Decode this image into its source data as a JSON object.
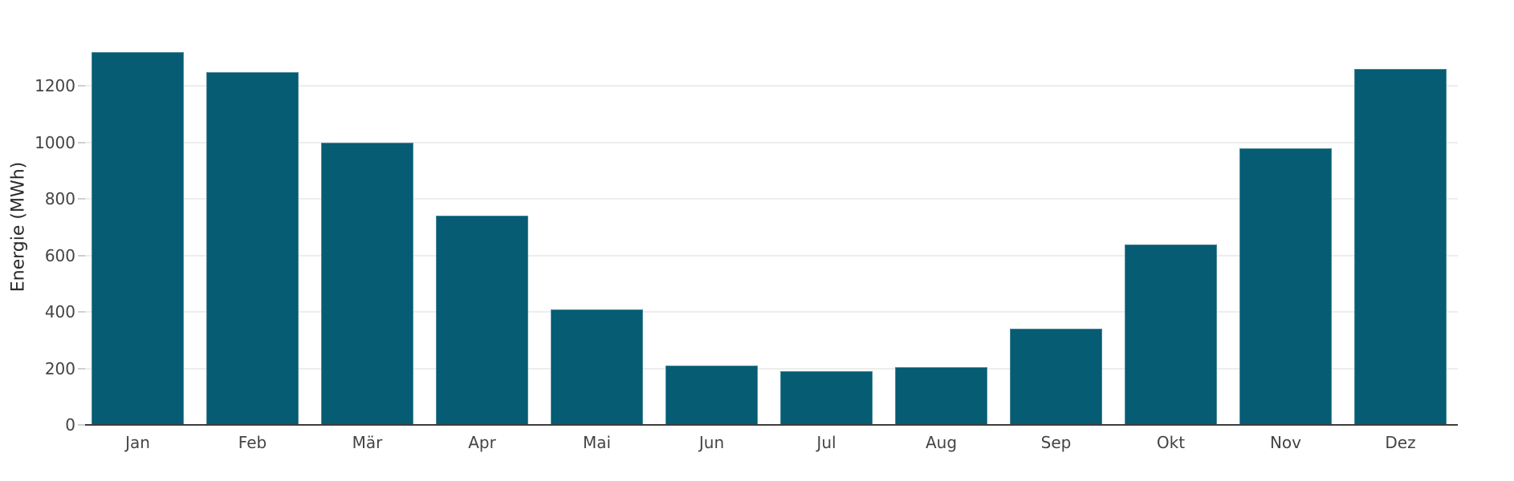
{
  "chart_data": {
    "type": "bar",
    "title": "",
    "categories": [
      "Jan",
      "Feb",
      "Mär",
      "Apr",
      "Mai",
      "Jun",
      "Jul",
      "Aug",
      "Sep",
      "Okt",
      "Nov",
      "Dez"
    ],
    "values": [
      1320,
      1250,
      1000,
      740,
      410,
      210,
      190,
      205,
      340,
      640,
      980,
      1260
    ],
    "xlabel": "",
    "ylabel": "Energie (MWh)",
    "ylim": [
      0,
      1400
    ],
    "yticks": [
      0,
      200,
      400,
      600,
      800,
      1000,
      1200
    ],
    "grid": true,
    "legend": "none",
    "bar_gap_fraction": 0.2,
    "colors": {
      "bar_fill": "#055c73",
      "axis_line": "#3d3d3d",
      "gridline": "#ededed",
      "tick_mark": "#cfcfcf",
      "tick_label": "#444444",
      "axis_title": "#2a2a2a",
      "background": "#ffffff"
    }
  }
}
